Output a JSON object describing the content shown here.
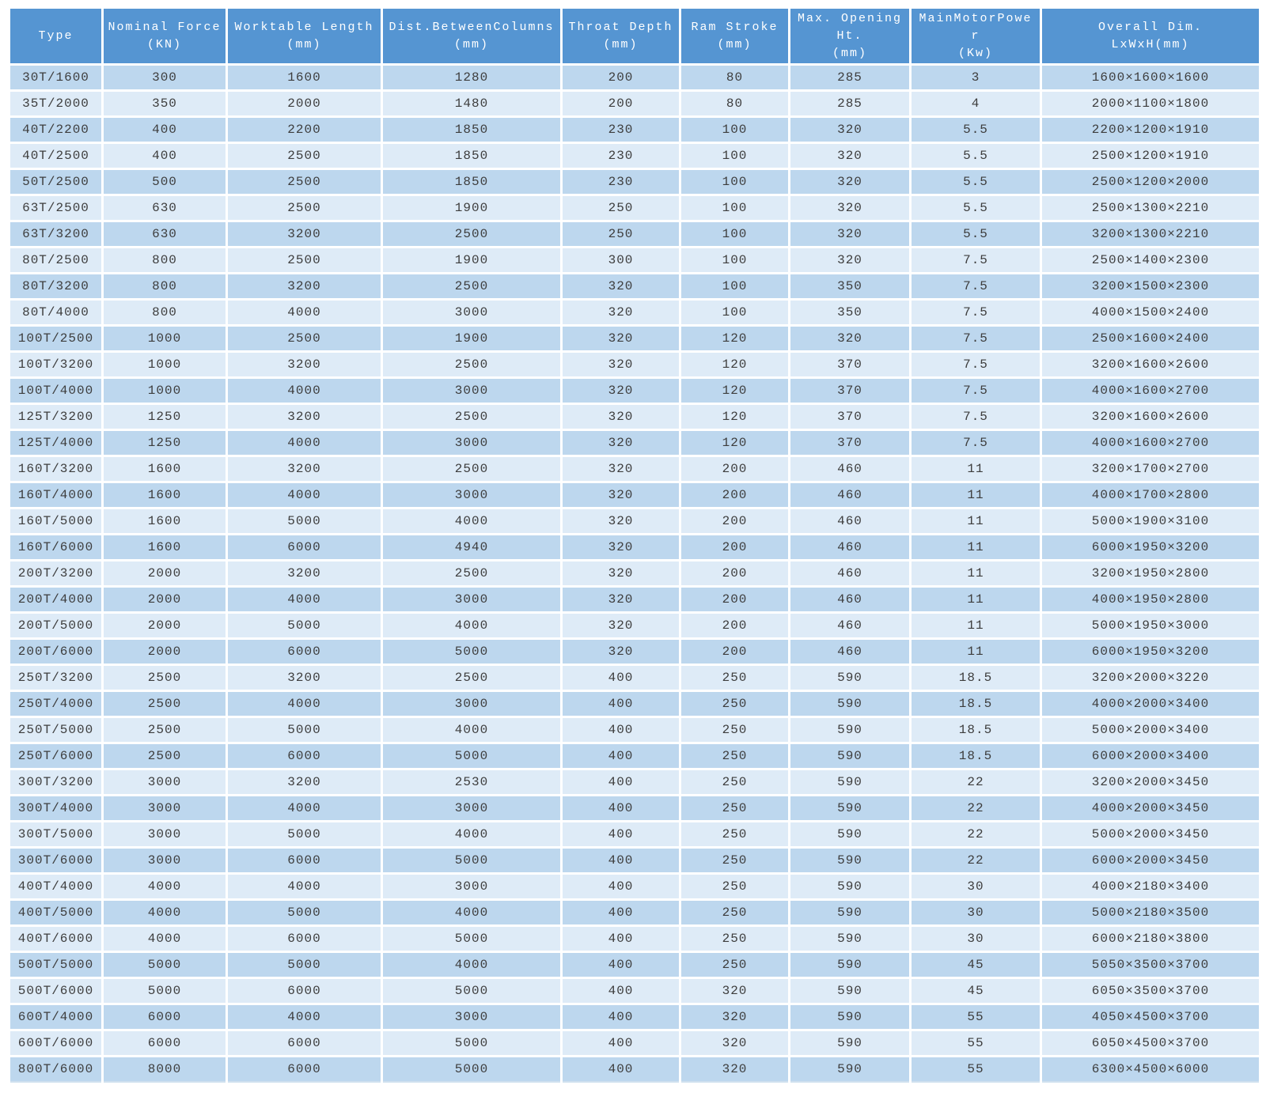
{
  "colors": {
    "header_bg": "#5595D2",
    "row_odd": "#BDD7EE",
    "row_even": "#DEEBF7",
    "grid": "#FFFFFF",
    "text": "#3D3D3D",
    "header_text": "#FFFFFF"
  },
  "table": {
    "columns": [
      "Type",
      "Nominal Force\n(KN)",
      "Worktable Length\n(mm)",
      "Dist.BetweenColumns\n(mm)",
      "Throat Depth\n(mm)",
      "Ram Stroke\n(mm)",
      "Max. Opening\nHt.\n(mm)",
      "MainMotorPowe\nr\n(Kw)",
      "Overall Dim.\nLxWxH(mm)"
    ],
    "rows": [
      [
        "30T/1600",
        "300",
        "1600",
        "1280",
        "200",
        "80",
        "285",
        "3",
        "1600×1600×1600"
      ],
      [
        "35T/2000",
        "350",
        "2000",
        "1480",
        "200",
        "80",
        "285",
        "4",
        "2000×1100×1800"
      ],
      [
        "40T/2200",
        "400",
        "2200",
        "1850",
        "230",
        "100",
        "320",
        "5.5",
        "2200×1200×1910"
      ],
      [
        "40T/2500",
        "400",
        "2500",
        "1850",
        "230",
        "100",
        "320",
        "5.5",
        "2500×1200×1910"
      ],
      [
        "50T/2500",
        "500",
        "2500",
        "1850",
        "230",
        "100",
        "320",
        "5.5",
        "2500×1200×2000"
      ],
      [
        "63T/2500",
        "630",
        "2500",
        "1900",
        "250",
        "100",
        "320",
        "5.5",
        "2500×1300×2210"
      ],
      [
        "63T/3200",
        "630",
        "3200",
        "2500",
        "250",
        "100",
        "320",
        "5.5",
        "3200×1300×2210"
      ],
      [
        "80T/2500",
        "800",
        "2500",
        "1900",
        "300",
        "100",
        "320",
        "7.5",
        "2500×1400×2300"
      ],
      [
        "80T/3200",
        "800",
        "3200",
        "2500",
        "320",
        "100",
        "350",
        "7.5",
        "3200×1500×2300"
      ],
      [
        "80T/4000",
        "800",
        "4000",
        "3000",
        "320",
        "100",
        "350",
        "7.5",
        "4000×1500×2400"
      ],
      [
        "100T/2500",
        "1000",
        "2500",
        "1900",
        "320",
        "120",
        "320",
        "7.5",
        "2500×1600×2400"
      ],
      [
        "100T/3200",
        "1000",
        "3200",
        "2500",
        "320",
        "120",
        "370",
        "7.5",
        "3200×1600×2600"
      ],
      [
        "100T/4000",
        "1000",
        "4000",
        "3000",
        "320",
        "120",
        "370",
        "7.5",
        "4000×1600×2700"
      ],
      [
        "125T/3200",
        "1250",
        "3200",
        "2500",
        "320",
        "120",
        "370",
        "7.5",
        "3200×1600×2600"
      ],
      [
        "125T/4000",
        "1250",
        "4000",
        "3000",
        "320",
        "120",
        "370",
        "7.5",
        "4000×1600×2700"
      ],
      [
        "160T/3200",
        "1600",
        "3200",
        "2500",
        "320",
        "200",
        "460",
        "11",
        "3200×1700×2700"
      ],
      [
        "160T/4000",
        "1600",
        "4000",
        "3000",
        "320",
        "200",
        "460",
        "11",
        "4000×1700×2800"
      ],
      [
        "160T/5000",
        "1600",
        "5000",
        "4000",
        "320",
        "200",
        "460",
        "11",
        "5000×1900×3100"
      ],
      [
        "160T/6000",
        "1600",
        "6000",
        "4940",
        "320",
        "200",
        "460",
        "11",
        "6000×1950×3200"
      ],
      [
        "200T/3200",
        "2000",
        "3200",
        "2500",
        "320",
        "200",
        "460",
        "11",
        "3200×1950×2800"
      ],
      [
        "200T/4000",
        "2000",
        "4000",
        "3000",
        "320",
        "200",
        "460",
        "11",
        "4000×1950×2800"
      ],
      [
        "200T/5000",
        "2000",
        "5000",
        "4000",
        "320",
        "200",
        "460",
        "11",
        "5000×1950×3000"
      ],
      [
        "200T/6000",
        "2000",
        "6000",
        "5000",
        "320",
        "200",
        "460",
        "11",
        "6000×1950×3200"
      ],
      [
        "250T/3200",
        "2500",
        "3200",
        "2500",
        "400",
        "250",
        "590",
        "18.5",
        "3200×2000×3220"
      ],
      [
        "250T/4000",
        "2500",
        "4000",
        "3000",
        "400",
        "250",
        "590",
        "18.5",
        "4000×2000×3400"
      ],
      [
        "250T/5000",
        "2500",
        "5000",
        "4000",
        "400",
        "250",
        "590",
        "18.5",
        "5000×2000×3400"
      ],
      [
        "250T/6000",
        "2500",
        "6000",
        "5000",
        "400",
        "250",
        "590",
        "18.5",
        "6000×2000×3400"
      ],
      [
        "300T/3200",
        "3000",
        "3200",
        "2530",
        "400",
        "250",
        "590",
        "22",
        "3200×2000×3450"
      ],
      [
        "300T/4000",
        "3000",
        "4000",
        "3000",
        "400",
        "250",
        "590",
        "22",
        "4000×2000×3450"
      ],
      [
        "300T/5000",
        "3000",
        "5000",
        "4000",
        "400",
        "250",
        "590",
        "22",
        "5000×2000×3450"
      ],
      [
        "300T/6000",
        "3000",
        "6000",
        "5000",
        "400",
        "250",
        "590",
        "22",
        "6000×2000×3450"
      ],
      [
        "400T/4000",
        "4000",
        "4000",
        "3000",
        "400",
        "250",
        "590",
        "30",
        "4000×2180×3400"
      ],
      [
        "400T/5000",
        "4000",
        "5000",
        "4000",
        "400",
        "250",
        "590",
        "30",
        "5000×2180×3500"
      ],
      [
        "400T/6000",
        "4000",
        "6000",
        "5000",
        "400",
        "250",
        "590",
        "30",
        "6000×2180×3800"
      ],
      [
        "500T/5000",
        "5000",
        "5000",
        "4000",
        "400",
        "250",
        "590",
        "45",
        "5050×3500×3700"
      ],
      [
        "500T/6000",
        "5000",
        "6000",
        "5000",
        "400",
        "320",
        "590",
        "45",
        "6050×3500×3700"
      ],
      [
        "600T/4000",
        "6000",
        "4000",
        "3000",
        "400",
        "320",
        "590",
        "55",
        "4050×4500×3700"
      ],
      [
        "600T/6000",
        "6000",
        "6000",
        "5000",
        "400",
        "320",
        "590",
        "55",
        "6050×4500×3700"
      ],
      [
        "800T/6000",
        "8000",
        "6000",
        "5000",
        "400",
        "320",
        "590",
        "55",
        "6300×4500×6000"
      ]
    ]
  }
}
